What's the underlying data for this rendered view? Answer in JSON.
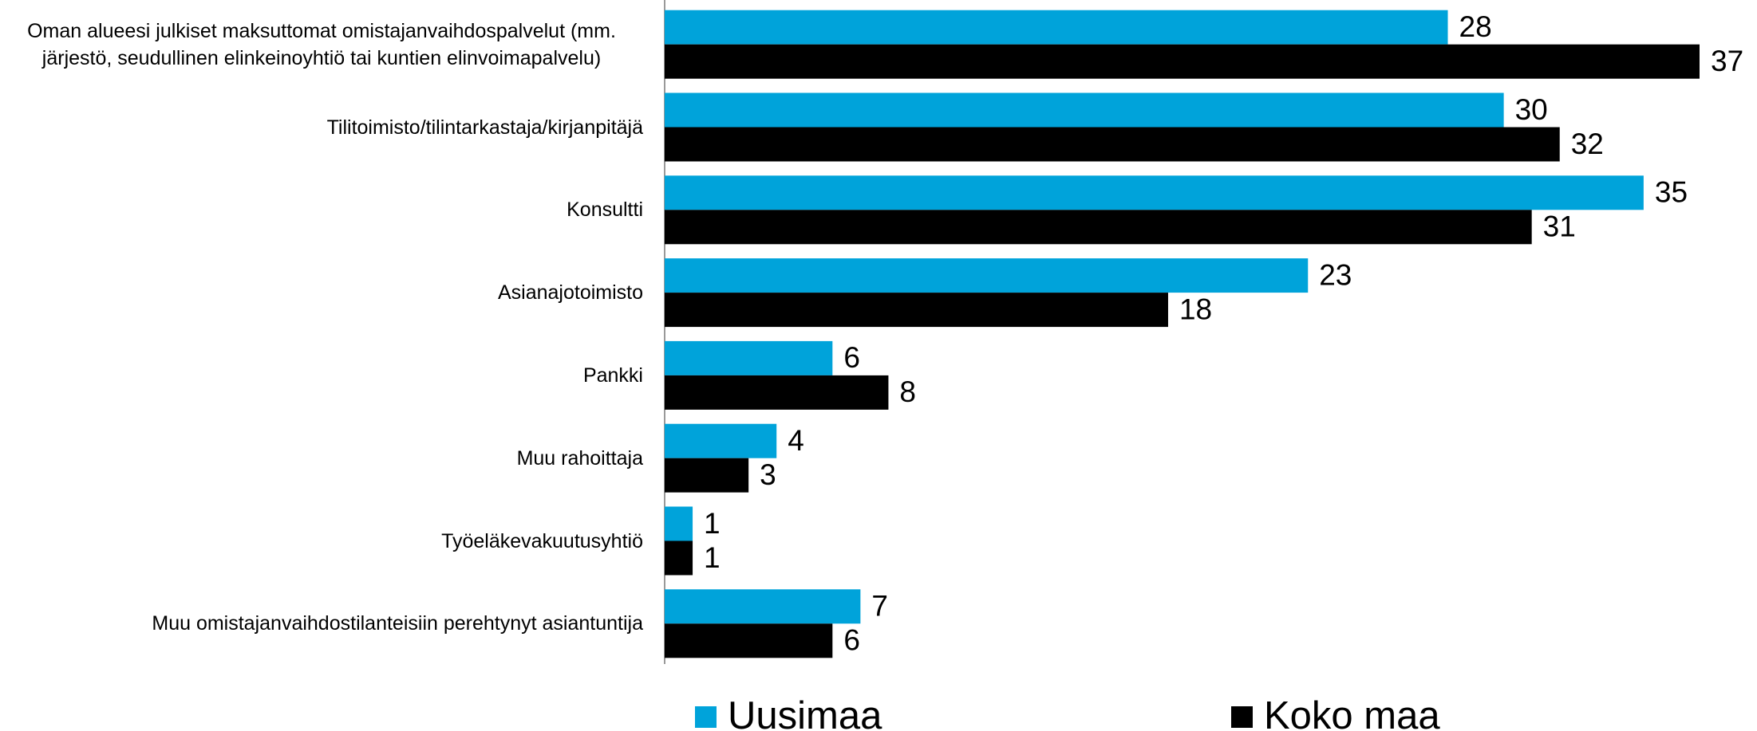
{
  "chart_data": {
    "type": "bar",
    "orientation": "horizontal",
    "categories": [
      "Oman alueesi julkiset maksuttomat omistajanvaihdospalvelut (mm. järjestö, seudullinen elinkeinoyhtiö tai  kuntien elinvoimapalvelu)",
      "Tilitoimisto/tilintarkastaja/kirjanpitäjä",
      "Konsultti",
      "Asianajotoimisto",
      "Pankki",
      "Muu rahoittaja",
      "Työeläkevakuutusyhtiö",
      "Muu omistajanvaihdostilanteisiin perehtynyt asiantuntija"
    ],
    "series": [
      {
        "name": "Uusimaa",
        "color": "#00a3da",
        "values": [
          28,
          30,
          35,
          23,
          6,
          4,
          1,
          7
        ]
      },
      {
        "name": "Koko maa",
        "color": "#000000",
        "values": [
          37,
          32,
          31,
          18,
          8,
          3,
          1,
          6
        ]
      }
    ],
    "legend": "bottom"
  }
}
